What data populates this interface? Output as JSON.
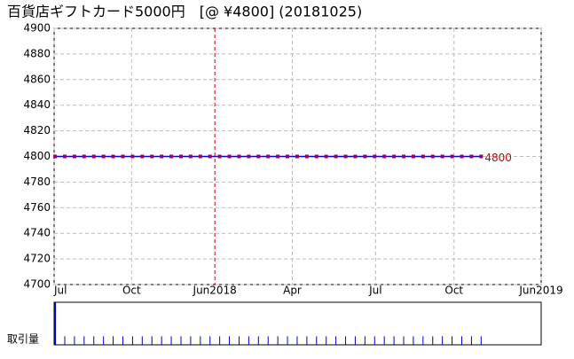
{
  "chart_data": {
    "type": "line",
    "title": "百貨店ギフトカード5000円　[@ ¥4800] (20181025)",
    "x": [
      0,
      1,
      2,
      3,
      4,
      5,
      6,
      7,
      8,
      9,
      10,
      11,
      12,
      13,
      14,
      15,
      16,
      17,
      18,
      19,
      20,
      21,
      22,
      23,
      24,
      25,
      26,
      27,
      28,
      29,
      30,
      31,
      32,
      33,
      34,
      35,
      36,
      37,
      38,
      39,
      40,
      41,
      42,
      43,
      44
    ],
    "series": [
      {
        "color": "#0000cc",
        "marker_color": "#990066",
        "values": [
          4800,
          4800,
          4800,
          4800,
          4800,
          4800,
          4800,
          4800,
          4800,
          4800,
          4800,
          4800,
          4800,
          4800,
          4800,
          4800,
          4800,
          4800,
          4800,
          4800,
          4800,
          4800,
          4800,
          4800,
          4800,
          4800,
          4800,
          4800,
          4800,
          4800,
          4800,
          4800,
          4800,
          4800,
          4800,
          4800,
          4800,
          4800,
          4800,
          4800,
          4800,
          4800,
          4800,
          4800,
          4800
        ]
      }
    ],
    "xlim": [
      -0.1,
      50.2
    ],
    "xticks": [
      {
        "value": -0.1,
        "label": "Jul"
      },
      {
        "value": 7.9,
        "label": "Oct"
      },
      {
        "value": 16.5,
        "label": "Jun2018"
      },
      {
        "value": 24.5,
        "label": "Apr"
      },
      {
        "value": 33.1,
        "label": "Jul"
      },
      {
        "value": 41.2,
        "label": "Oct"
      },
      {
        "value": 50.2,
        "label": "Jun2019"
      }
    ],
    "ylim": [
      4700,
      4900
    ],
    "yticks": [
      4700,
      4720,
      4740,
      4760,
      4780,
      4800,
      4820,
      4840,
      4860,
      4880,
      4900
    ],
    "grid": true,
    "year_line_tick": 2,
    "label_color": "#cc0000",
    "volume": {
      "label": "取引量",
      "color": "#0000cc",
      "ylim": [
        0,
        5
      ],
      "values": [
        5,
        1,
        1,
        1,
        1,
        1,
        1,
        1,
        1,
        1,
        1,
        1,
        1,
        1,
        1,
        1,
        1,
        1,
        1,
        1,
        1,
        1,
        1,
        1,
        1,
        1,
        1,
        1,
        1,
        1,
        1,
        1,
        1,
        1,
        1,
        1,
        1,
        1,
        1,
        1,
        1,
        1,
        1,
        1,
        1
      ]
    }
  }
}
